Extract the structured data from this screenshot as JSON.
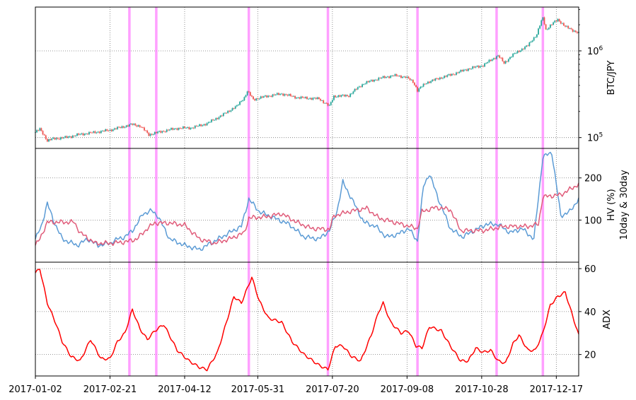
{
  "chart_data": [
    {
      "type": "candlestick",
      "panel": "price",
      "ylabel": "BTC/JPY",
      "yscale": "log",
      "ylim": [
        75000,
        3200000
      ],
      "grid": true,
      "ytick_labels": [
        {
          "value": 100000,
          "base": "10",
          "exp": "5"
        },
        {
          "value": 1000000,
          "base": "10",
          "exp": "6"
        }
      ],
      "colors": {
        "up": "#26a69a",
        "down": "#ef5350"
      },
      "price_path": [
        {
          "day": 0,
          "price": 115000
        },
        {
          "day": 3,
          "price": 125000
        },
        {
          "day": 8,
          "price": 92000
        },
        {
          "day": 12,
          "price": 97000
        },
        {
          "day": 20,
          "price": 100000
        },
        {
          "day": 30,
          "price": 109000
        },
        {
          "day": 40,
          "price": 115000
        },
        {
          "day": 50,
          "price": 122000
        },
        {
          "day": 60,
          "price": 135000
        },
        {
          "day": 65,
          "price": 142000
        },
        {
          "day": 70,
          "price": 136000
        },
        {
          "day": 76,
          "price": 108000
        },
        {
          "day": 85,
          "price": 118000
        },
        {
          "day": 95,
          "price": 128000
        },
        {
          "day": 105,
          "price": 130000
        },
        {
          "day": 115,
          "price": 145000
        },
        {
          "day": 125,
          "price": 180000
        },
        {
          "day": 135,
          "price": 230000
        },
        {
          "day": 140,
          "price": 290000
        },
        {
          "day": 142,
          "price": 340000
        },
        {
          "day": 146,
          "price": 275000
        },
        {
          "day": 155,
          "price": 300000
        },
        {
          "day": 165,
          "price": 320000
        },
        {
          "day": 175,
          "price": 290000
        },
        {
          "day": 190,
          "price": 280000
        },
        {
          "day": 197,
          "price": 230000
        },
        {
          "day": 200,
          "price": 300000
        },
        {
          "day": 210,
          "price": 305000
        },
        {
          "day": 220,
          "price": 420000
        },
        {
          "day": 230,
          "price": 480000
        },
        {
          "day": 240,
          "price": 520000
        },
        {
          "day": 248,
          "price": 500000
        },
        {
          "day": 253,
          "price": 440000
        },
        {
          "day": 256,
          "price": 350000
        },
        {
          "day": 262,
          "price": 430000
        },
        {
          "day": 270,
          "price": 480000
        },
        {
          "day": 280,
          "price": 540000
        },
        {
          "day": 290,
          "price": 620000
        },
        {
          "day": 300,
          "price": 680000
        },
        {
          "day": 310,
          "price": 880000
        },
        {
          "day": 314,
          "price": 720000
        },
        {
          "day": 320,
          "price": 900000
        },
        {
          "day": 330,
          "price": 1150000
        },
        {
          "day": 336,
          "price": 1550000
        },
        {
          "day": 340,
          "price": 2400000
        },
        {
          "day": 342,
          "price": 1750000
        },
        {
          "day": 350,
          "price": 2300000
        },
        {
          "day": 355,
          "price": 1900000
        },
        {
          "day": 364,
          "price": 1600000
        }
      ]
    },
    {
      "type": "line",
      "panel": "volatility",
      "ylabel_lines": [
        "HV (%)",
        "10day & 30day"
      ],
      "ylim": [
        0,
        270
      ],
      "yticks": [
        100,
        200
      ],
      "grid": true,
      "series": [
        {
          "color": "#5b9bd5",
          "points": [
            {
              "day": 0,
              "value": 55
            },
            {
              "day": 4,
              "value": 85
            },
            {
              "day": 8,
              "value": 140
            },
            {
              "day": 12,
              "value": 100
            },
            {
              "day": 18,
              "value": 55
            },
            {
              "day": 28,
              "value": 40
            },
            {
              "day": 35,
              "value": 55
            },
            {
              "day": 42,
              "value": 40
            },
            {
              "day": 50,
              "value": 45
            },
            {
              "day": 55,
              "value": 55
            },
            {
              "day": 60,
              "value": 60
            },
            {
              "day": 65,
              "value": 75
            },
            {
              "day": 68,
              "value": 90
            },
            {
              "day": 72,
              "value": 115
            },
            {
              "day": 78,
              "value": 122
            },
            {
              "day": 82,
              "value": 110
            },
            {
              "day": 90,
              "value": 55
            },
            {
              "day": 100,
              "value": 40
            },
            {
              "day": 110,
              "value": 30
            },
            {
              "day": 120,
              "value": 50
            },
            {
              "day": 130,
              "value": 70
            },
            {
              "day": 138,
              "value": 85
            },
            {
              "day": 143,
              "value": 150
            },
            {
              "day": 150,
              "value": 120
            },
            {
              "day": 160,
              "value": 105
            },
            {
              "day": 170,
              "value": 90
            },
            {
              "day": 180,
              "value": 60
            },
            {
              "day": 190,
              "value": 55
            },
            {
              "day": 197,
              "value": 75
            },
            {
              "day": 202,
              "value": 120
            },
            {
              "day": 206,
              "value": 190
            },
            {
              "day": 212,
              "value": 150
            },
            {
              "day": 220,
              "value": 95
            },
            {
              "day": 228,
              "value": 85
            },
            {
              "day": 235,
              "value": 60
            },
            {
              "day": 242,
              "value": 65
            },
            {
              "day": 250,
              "value": 80
            },
            {
              "day": 256,
              "value": 50
            },
            {
              "day": 260,
              "value": 180
            },
            {
              "day": 264,
              "value": 210
            },
            {
              "day": 270,
              "value": 150
            },
            {
              "day": 278,
              "value": 80
            },
            {
              "day": 286,
              "value": 60
            },
            {
              "day": 294,
              "value": 75
            },
            {
              "day": 302,
              "value": 90
            },
            {
              "day": 310,
              "value": 90
            },
            {
              "day": 318,
              "value": 70
            },
            {
              "day": 326,
              "value": 80
            },
            {
              "day": 334,
              "value": 55
            },
            {
              "day": 340,
              "value": 250
            },
            {
              "day": 346,
              "value": 260
            },
            {
              "day": 352,
              "value": 110
            },
            {
              "day": 358,
              "value": 120
            },
            {
              "day": 364,
              "value": 150
            }
          ]
        },
        {
          "color": "#e05c7a",
          "points": [
            {
              "day": 0,
              "value": 40
            },
            {
              "day": 3,
              "value": 55
            },
            {
              "day": 8,
              "value": 95
            },
            {
              "day": 18,
              "value": 95
            },
            {
              "day": 26,
              "value": 95
            },
            {
              "day": 30,
              "value": 70
            },
            {
              "day": 40,
              "value": 45
            },
            {
              "day": 50,
              "value": 45
            },
            {
              "day": 60,
              "value": 48
            },
            {
              "day": 68,
              "value": 55
            },
            {
              "day": 75,
              "value": 80
            },
            {
              "day": 80,
              "value": 93
            },
            {
              "day": 90,
              "value": 93
            },
            {
              "day": 100,
              "value": 88
            },
            {
              "day": 110,
              "value": 55
            },
            {
              "day": 120,
              "value": 45
            },
            {
              "day": 130,
              "value": 55
            },
            {
              "day": 140,
              "value": 70
            },
            {
              "day": 143,
              "value": 105
            },
            {
              "day": 155,
              "value": 108
            },
            {
              "day": 165,
              "value": 115
            },
            {
              "day": 175,
              "value": 95
            },
            {
              "day": 185,
              "value": 80
            },
            {
              "day": 197,
              "value": 78
            },
            {
              "day": 200,
              "value": 110
            },
            {
              "day": 210,
              "value": 120
            },
            {
              "day": 222,
              "value": 128
            },
            {
              "day": 230,
              "value": 105
            },
            {
              "day": 240,
              "value": 95
            },
            {
              "day": 256,
              "value": 80
            },
            {
              "day": 259,
              "value": 120
            },
            {
              "day": 268,
              "value": 130
            },
            {
              "day": 278,
              "value": 125
            },
            {
              "day": 285,
              "value": 75
            },
            {
              "day": 300,
              "value": 75
            },
            {
              "day": 314,
              "value": 85
            },
            {
              "day": 330,
              "value": 85
            },
            {
              "day": 337,
              "value": 90
            },
            {
              "day": 340,
              "value": 155
            },
            {
              "day": 352,
              "value": 160
            },
            {
              "day": 364,
              "value": 185
            }
          ]
        }
      ]
    },
    {
      "type": "line",
      "panel": "adx",
      "ylabel": "ADX",
      "ylim": [
        10,
        63
      ],
      "yticks": [
        20,
        40,
        60
      ],
      "grid": true,
      "series": [
        {
          "color": "#ff0000",
          "points": [
            {
              "day": 0,
              "value": 58
            },
            {
              "day": 3,
              "value": 60
            },
            {
              "day": 8,
              "value": 44
            },
            {
              "day": 14,
              "value": 34
            },
            {
              "day": 18,
              "value": 26
            },
            {
              "day": 24,
              "value": 19
            },
            {
              "day": 30,
              "value": 17
            },
            {
              "day": 37,
              "value": 27
            },
            {
              "day": 44,
              "value": 18
            },
            {
              "day": 50,
              "value": 18
            },
            {
              "day": 55,
              "value": 26
            },
            {
              "day": 60,
              "value": 30
            },
            {
              "day": 65,
              "value": 41
            },
            {
              "day": 70,
              "value": 32
            },
            {
              "day": 75,
              "value": 27
            },
            {
              "day": 80,
              "value": 31
            },
            {
              "day": 86,
              "value": 34
            },
            {
              "day": 95,
              "value": 22
            },
            {
              "day": 103,
              "value": 17
            },
            {
              "day": 110,
              "value": 14
            },
            {
              "day": 115,
              "value": 13
            },
            {
              "day": 122,
              "value": 21
            },
            {
              "day": 128,
              "value": 35
            },
            {
              "day": 133,
              "value": 47
            },
            {
              "day": 138,
              "value": 44
            },
            {
              "day": 145,
              "value": 56
            },
            {
              "day": 150,
              "value": 45
            },
            {
              "day": 156,
              "value": 37
            },
            {
              "day": 165,
              "value": 35
            },
            {
              "day": 172,
              "value": 26
            },
            {
              "day": 180,
              "value": 20
            },
            {
              "day": 190,
              "value": 15
            },
            {
              "day": 196,
              "value": 13
            },
            {
              "day": 201,
              "value": 24
            },
            {
              "day": 206,
              "value": 24
            },
            {
              "day": 212,
              "value": 19
            },
            {
              "day": 218,
              "value": 17
            },
            {
              "day": 225,
              "value": 29
            },
            {
              "day": 230,
              "value": 40
            },
            {
              "day": 233,
              "value": 44
            },
            {
              "day": 238,
              "value": 35
            },
            {
              "day": 245,
              "value": 30
            },
            {
              "day": 250,
              "value": 31
            },
            {
              "day": 255,
              "value": 24
            },
            {
              "day": 259,
              "value": 23
            },
            {
              "day": 264,
              "value": 33
            },
            {
              "day": 272,
              "value": 31
            },
            {
              "day": 278,
              "value": 24
            },
            {
              "day": 285,
              "value": 17
            },
            {
              "day": 290,
              "value": 17
            },
            {
              "day": 295,
              "value": 23
            },
            {
              "day": 300,
              "value": 21
            },
            {
              "day": 305,
              "value": 22
            },
            {
              "day": 310,
              "value": 17
            },
            {
              "day": 315,
              "value": 16
            },
            {
              "day": 320,
              "value": 25
            },
            {
              "day": 324,
              "value": 29
            },
            {
              "day": 330,
              "value": 22
            },
            {
              "day": 335,
              "value": 22
            },
            {
              "day": 340,
              "value": 30
            },
            {
              "day": 345,
              "value": 43
            },
            {
              "day": 350,
              "value": 47
            },
            {
              "day": 355,
              "value": 49
            },
            {
              "day": 359,
              "value": 40
            },
            {
              "day": 364,
              "value": 29
            }
          ]
        }
      ]
    }
  ],
  "shared": {
    "x_start": "2017-01-02",
    "x_range_days": [
      0,
      364
    ],
    "xtick_labels": [
      {
        "day": 0,
        "label": "2017-01-02"
      },
      {
        "day": 50,
        "label": "2017-02-21"
      },
      {
        "day": 100,
        "label": "2017-04-12"
      },
      {
        "day": 149,
        "label": "2017-05-31"
      },
      {
        "day": 199,
        "label": "2017-07-20"
      },
      {
        "day": 249,
        "label": "2017-09-08"
      },
      {
        "day": 299,
        "label": "2017-10-28"
      },
      {
        "day": 349,
        "label": "2017-12-17"
      }
    ],
    "highlight_days": [
      63,
      81,
      143,
      196,
      256,
      309,
      340
    ],
    "highlight_color": "#ff80ff"
  }
}
